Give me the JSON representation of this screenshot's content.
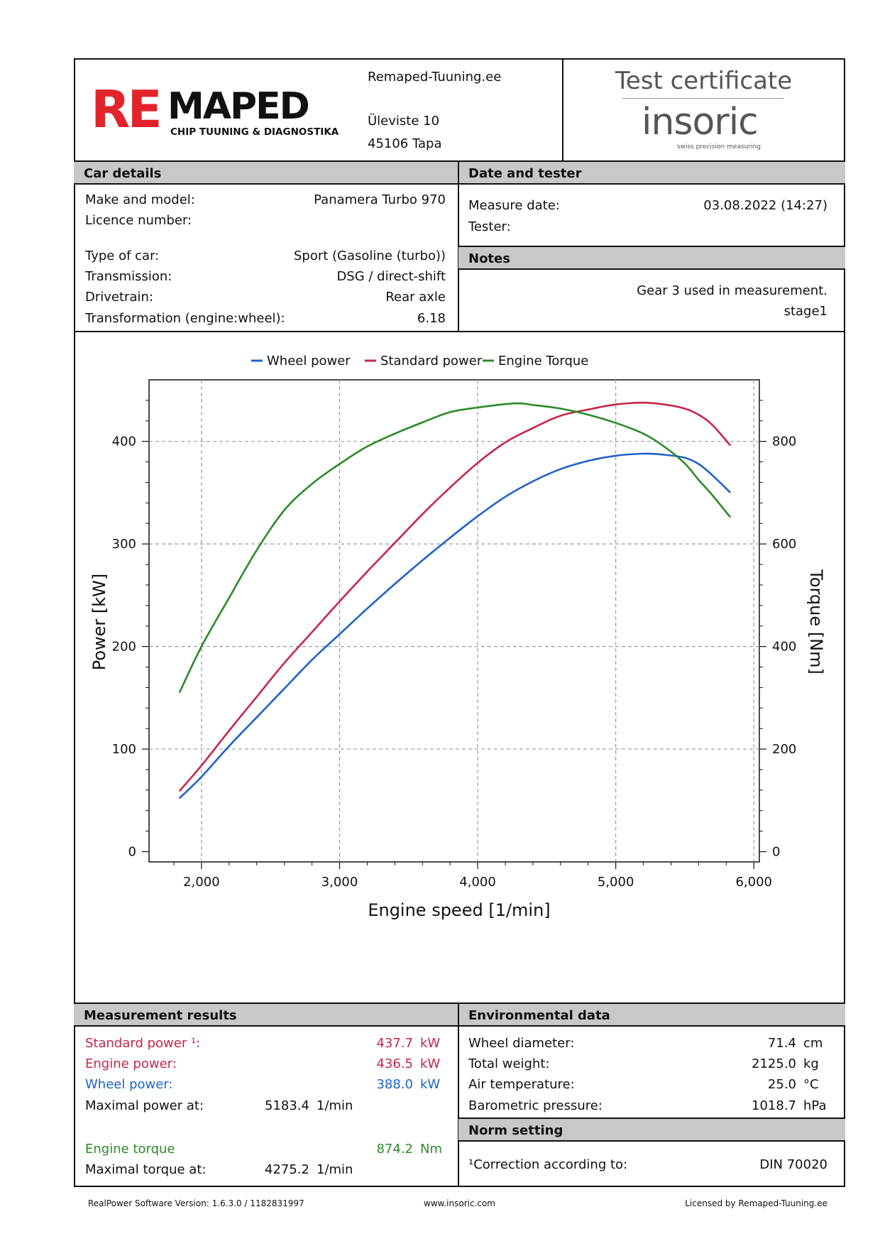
{
  "header": {
    "logo": {
      "big_part1": "RE",
      "big_part2": "MAPED",
      "sub": "CHIP TUUNING & DIAGNOSTIKA",
      "red": "#e2232b"
    },
    "site": "Remaped-Tuuning.ee",
    "street": "Üleviste 10",
    "city": "45106 Tapa",
    "cert_title": "Test certificate",
    "brand_logo": {
      "name": "insoric",
      "tagline": "swiss precision measuring",
      "accent": "#e2232b"
    }
  },
  "car_details": {
    "title": "Car details",
    "make_label": "Make and model:",
    "make_value": "Panamera Turbo 970",
    "licence_label": "Licence number:",
    "licence_value": "",
    "type_label": "Type of car:",
    "type_value": "Sport (Gasoline (turbo))",
    "transmission_label": "Transmission:",
    "transmission_value": "DSG / direct-shift",
    "drivetrain_label": "Drivetrain:",
    "drivetrain_value": "Rear axle",
    "transform_label": "Transformation (engine:wheel):",
    "transform_value": "6.18"
  },
  "date_tester": {
    "title": "Date and tester",
    "date_label": "Measure date:",
    "date_value": "03.08.2022 (14:27)",
    "tester_label": "Tester:",
    "tester_value": ""
  },
  "notes": {
    "title": "Notes",
    "line1": "Gear 3 used in measurement.",
    "line2": "stage1"
  },
  "chart_data": {
    "type": "line",
    "xlabel": "Engine speed [1/min]",
    "ylabel": "Power [kW]",
    "y2label": "Torque [Nm]",
    "xlim": [
      1620,
      6040
    ],
    "ylim": [
      -10,
      460
    ],
    "y2lim": [
      -20,
      920
    ],
    "xticks": [
      2000,
      3000,
      4000,
      5000,
      6000
    ],
    "xtick_labels": [
      "2,000",
      "3,000",
      "4,000",
      "5,000",
      "6,000"
    ],
    "yticks": [
      0,
      100,
      200,
      300,
      400
    ],
    "yticks_labels": [
      "0",
      "100",
      "200",
      "300",
      "400"
    ],
    "y2ticks": [
      0,
      200,
      400,
      600,
      800
    ],
    "y2ticks_labels": [
      "0",
      "200",
      "400",
      "600",
      "800"
    ],
    "grid": true,
    "legend_position": "top-center",
    "series": [
      {
        "name": "Wheel power",
        "axis": "left",
        "color": "#1f62c8",
        "x": [
          1840,
          2000,
          2200,
          2400,
          2600,
          2800,
          3000,
          3200,
          3400,
          3600,
          3800,
          4000,
          4200,
          4400,
          4600,
          4800,
          5000,
          5200,
          5350,
          5500,
          5600,
          5700,
          5830
        ],
        "y": [
          52,
          73,
          103,
          131,
          159,
          187,
          212,
          237,
          261,
          284,
          306,
          327,
          346,
          361,
          373,
          381,
          386,
          388,
          387,
          384,
          378,
          367,
          350
        ]
      },
      {
        "name": "Standard power",
        "axis": "left",
        "color": "#c8254a",
        "x": [
          1840,
          2000,
          2200,
          2400,
          2600,
          2800,
          3000,
          3200,
          3400,
          3600,
          3800,
          4000,
          4200,
          4400,
          4600,
          4800,
          5000,
          5200,
          5350,
          5500,
          5600,
          5700,
          5830
        ],
        "y": [
          59,
          84,
          118,
          151,
          184,
          214,
          244,
          273,
          301,
          329,
          355,
          379,
          399,
          413,
          425,
          431,
          436,
          437.7,
          436,
          432,
          426,
          416,
          396
        ]
      },
      {
        "name": "Engine Torque",
        "axis": "right",
        "color": "#2c8a2a",
        "x": [
          1840,
          2000,
          2200,
          2400,
          2600,
          2800,
          3000,
          3200,
          3400,
          3600,
          3800,
          4000,
          4275,
          4400,
          4600,
          4800,
          5000,
          5200,
          5350,
          5500,
          5600,
          5700,
          5830
        ],
        "y": [
          310,
          400,
          495,
          588,
          666,
          717,
          756,
          790,
          815,
          837,
          857,
          866,
          874.2,
          871,
          864,
          852,
          836,
          815,
          790,
          757,
          725,
          695,
          652
        ]
      }
    ]
  },
  "measurement": {
    "title": "Measurement results",
    "std_power_label": "Standard power ¹:",
    "std_power_value": "437.7",
    "std_power_unit": "kW",
    "engine_power_label": "Engine power:",
    "engine_power_value": "436.5",
    "engine_power_unit": "kW",
    "wheel_power_label": "Wheel power:",
    "wheel_power_value": "388.0",
    "wheel_power_unit": "kW",
    "max_power_label": "Maximal power at:",
    "max_power_value": "5183.4",
    "max_power_unit": "1/min",
    "torque_label": "Engine torque",
    "torque_value": "874.2",
    "torque_unit": "Nm",
    "max_torque_label": "Maximal torque at:",
    "max_torque_value": "4275.2",
    "max_torque_unit": "1/min"
  },
  "environment": {
    "title": "Environmental data",
    "wheel_label": "Wheel diameter:",
    "wheel_value": "71.4",
    "wheel_unit": "cm",
    "weight_label": "Total weight:",
    "weight_value": "2125.0",
    "weight_unit": "kg",
    "air_label": "Air temperature:",
    "air_value": "25.0",
    "air_unit": "°C",
    "baro_label": "Barometric pressure:",
    "baro_value": "1018.7",
    "baro_unit": "hPa"
  },
  "norm": {
    "title": "Norm setting",
    "label": "¹Correction according to:",
    "value": "DIN 70020"
  },
  "footer": {
    "left": "RealPower Software Version: 1.6.3.0 / 1182831997",
    "center": "www.insoric.com",
    "right": "Licensed by Remaped-Tuuning.ee"
  }
}
